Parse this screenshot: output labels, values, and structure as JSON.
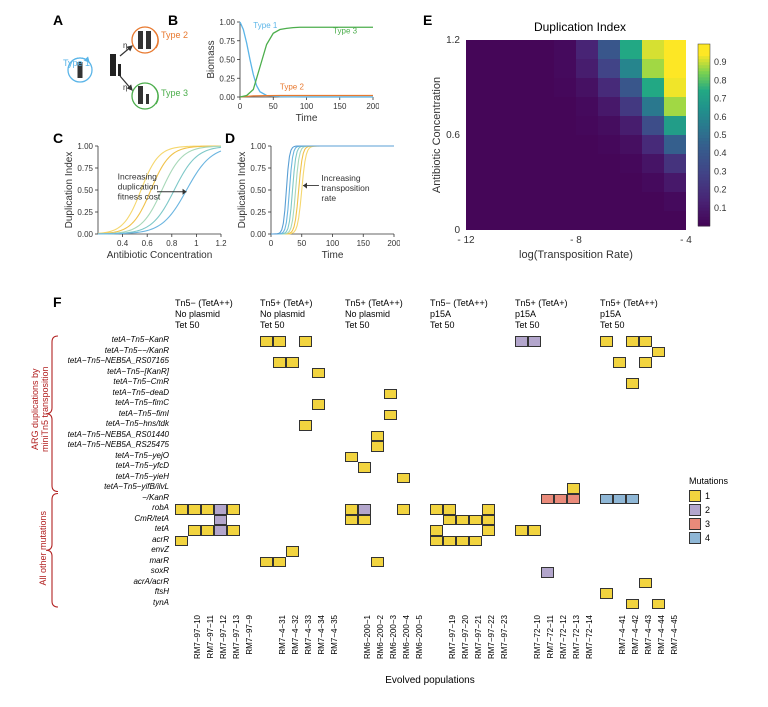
{
  "panelA": {
    "label": "A",
    "types": {
      "type1": {
        "label": "Type 1",
        "color": "#5bb5e8"
      },
      "type2": {
        "label": "Type 2",
        "color": "#e8792f"
      },
      "type3": {
        "label": "Type 3",
        "color": "#4cae4c"
      }
    },
    "eta": "η"
  },
  "panelB": {
    "label": "B",
    "xlabel": "Time",
    "ylabel": "Biomass",
    "xlim": [
      0,
      200
    ],
    "ylim": [
      0,
      1.0
    ],
    "xticks": [
      0,
      50,
      100,
      150,
      200
    ],
    "yticks": [
      0.0,
      0.25,
      0.5,
      0.75,
      1.0
    ],
    "series": {
      "type1": {
        "label": "Type 1",
        "color": "#5bb5e8",
        "x": [
          0,
          5,
          10,
          15,
          20,
          25,
          30,
          40,
          60,
          100,
          200
        ],
        "y": [
          1.0,
          0.9,
          0.72,
          0.5,
          0.3,
          0.15,
          0.07,
          0.02,
          0.003,
          0.001,
          0.001
        ]
      },
      "type2": {
        "label": "Type 2",
        "color": "#e8792f",
        "x": [
          0,
          20,
          40,
          60,
          80,
          100,
          150,
          200
        ],
        "y": [
          0.0,
          0.015,
          0.018,
          0.02,
          0.02,
          0.02,
          0.02,
          0.02
        ]
      },
      "type3": {
        "label": "Type 3",
        "color": "#4cae4c",
        "x": [
          0,
          10,
          20,
          30,
          40,
          50,
          60,
          70,
          80,
          90,
          100,
          150,
          200
        ],
        "y": [
          0.0,
          0.02,
          0.1,
          0.4,
          0.7,
          0.85,
          0.9,
          0.915,
          0.925,
          0.93,
          0.93,
          0.93,
          0.93
        ]
      }
    }
  },
  "panelC": {
    "label": "C",
    "xlabel": "Antibiotic Concentration",
    "ylabel": "Duplication Index",
    "xlim": [
      0.2,
      1.2
    ],
    "ylim": [
      0,
      1.0
    ],
    "xticks": [
      0.4,
      0.6,
      0.8,
      1.0,
      1.2
    ],
    "yticks": [
      0.0,
      0.25,
      0.5,
      0.75,
      1.0
    ],
    "annotation": "Increasing\nduplication\nfitness cost",
    "curves": [
      {
        "color": "#f5d76e",
        "x50": 0.55,
        "k": 14
      },
      {
        "color": "#f0c24b",
        "x50": 0.63,
        "k": 13
      },
      {
        "color": "#a8d8b9",
        "x50": 0.72,
        "k": 12
      },
      {
        "color": "#7ec8c8",
        "x50": 0.82,
        "k": 11
      },
      {
        "color": "#6bb5e0",
        "x50": 0.92,
        "k": 10
      }
    ]
  },
  "panelD": {
    "label": "D",
    "xlabel": "Time",
    "ylabel": "Duplication Index",
    "xlim": [
      0,
      200
    ],
    "ylim": [
      0,
      1.0
    ],
    "xticks": [
      0,
      50,
      100,
      150,
      200
    ],
    "yticks": [
      0.0,
      0.25,
      0.5,
      0.75,
      1.0
    ],
    "annotation": "Increasing\ntransposition\nrate",
    "curves": [
      {
        "color": "#f5d76e",
        "x50": 50,
        "k": 0.3
      },
      {
        "color": "#f0c24b",
        "x50": 45,
        "k": 0.32
      },
      {
        "color": "#a8d8b9",
        "x50": 40,
        "k": 0.34
      },
      {
        "color": "#7ec8c8",
        "x50": 35,
        "k": 0.36
      },
      {
        "color": "#6bb5e0",
        "x50": 30,
        "k": 0.38
      },
      {
        "color": "#5a9fd4",
        "x50": 25,
        "k": 0.4
      }
    ]
  },
  "panelE": {
    "label": "E",
    "title": "Duplication Index",
    "xlabel": "log(Transposition Rate)",
    "ylabel": "Antibiotic Concentration",
    "xticks": [
      "- 12",
      "- 8",
      "- 4"
    ],
    "yticks": [
      "0",
      "0.6",
      "1.2"
    ],
    "cbar_ticks": [
      "0.1",
      "0.2",
      "0.3",
      "0.4",
      "0.5",
      "0.6",
      "0.7",
      "0.8",
      "0.9"
    ],
    "nrows": 10,
    "ncols": 10,
    "colorscale": [
      [
        0.0,
        "#440154"
      ],
      [
        0.15,
        "#482475"
      ],
      [
        0.3,
        "#414487"
      ],
      [
        0.45,
        "#355f8d"
      ],
      [
        0.55,
        "#2a788e"
      ],
      [
        0.65,
        "#21918c"
      ],
      [
        0.75,
        "#22a884"
      ],
      [
        0.85,
        "#7ad151"
      ],
      [
        0.95,
        "#fde725"
      ]
    ],
    "grid": [
      [
        0.02,
        0.02,
        0.02,
        0.02,
        0.04,
        0.15,
        0.4,
        0.75,
        0.92,
        0.97
      ],
      [
        0.02,
        0.02,
        0.02,
        0.02,
        0.04,
        0.12,
        0.3,
        0.6,
        0.88,
        0.96
      ],
      [
        0.02,
        0.02,
        0.02,
        0.02,
        0.03,
        0.07,
        0.18,
        0.4,
        0.75,
        0.94
      ],
      [
        0.02,
        0.02,
        0.02,
        0.02,
        0.02,
        0.04,
        0.1,
        0.25,
        0.55,
        0.88
      ],
      [
        0.02,
        0.02,
        0.02,
        0.02,
        0.02,
        0.03,
        0.05,
        0.12,
        0.35,
        0.7
      ],
      [
        0.02,
        0.02,
        0.02,
        0.02,
        0.02,
        0.02,
        0.03,
        0.06,
        0.18,
        0.45
      ],
      [
        0.02,
        0.02,
        0.02,
        0.02,
        0.02,
        0.02,
        0.02,
        0.03,
        0.08,
        0.22
      ],
      [
        0.02,
        0.02,
        0.02,
        0.02,
        0.02,
        0.02,
        0.02,
        0.02,
        0.04,
        0.1
      ],
      [
        0.02,
        0.02,
        0.02,
        0.02,
        0.02,
        0.02,
        0.02,
        0.02,
        0.02,
        0.04
      ],
      [
        0.02,
        0.02,
        0.02,
        0.02,
        0.02,
        0.02,
        0.02,
        0.02,
        0.02,
        0.02
      ]
    ]
  },
  "panelF": {
    "label": "F",
    "xlabel": "Evolved populations",
    "bracket1": "ARG duplications by\nminiTn5 transposition",
    "bracket2": "All other mutations",
    "mutations_legend_title": "Mutations",
    "mutation_colors": {
      "1": "#f2d43f",
      "2": "#b3a6cc",
      "3": "#e98a7a",
      "4": "#8fb7d6"
    },
    "mutation_levels": [
      "1",
      "2",
      "3",
      "4"
    ],
    "headers": [
      [
        "Tn5− (TetA++)",
        "No plasmid",
        "Tet 50"
      ],
      [
        "Tn5+ (TetA+)",
        "No plasmid",
        "Tet 50"
      ],
      [
        "Tn5+ (TetA++)",
        "No plasmid",
        "Tet 50"
      ],
      [
        "Tn5− (TetA++)",
        "p15A",
        "Tet 50"
      ],
      [
        "Tn5+ (TetA+)",
        "p15A",
        "Tet 50"
      ],
      [
        "Tn5+ (TetA++)",
        "p15A",
        "Tet 50"
      ]
    ],
    "rows_group1": [
      "tetA−Tn5−KanR",
      "tetA−Tn5−−/KanR",
      "tetA−Tn5−NEB5A_RS07165",
      "tetA−Tn5−[KanR]",
      "tetA−Tn5−CmR",
      "tetA−Tn5−deaD",
      "tetA−Tn5−fimC",
      "tetA−Tn5−fimI",
      "tetA−Tn5−hns/tdk",
      "tetA−Tn5−NEB5A_RS01440",
      "tetA−Tn5−NEB5A_RS25475",
      "tetA−Tn5−yejO",
      "tetA−Tn5−yfcD",
      "tetA−Tn5−yieH",
      "tetA−Tn5−yifB/ilvL"
    ],
    "rows_group2": [
      "−/KanR",
      "robA",
      "CmR/tetA",
      "tetA",
      "acrR",
      "envZ",
      "marR",
      "soxR",
      "acrA/acrR",
      "ftsH",
      "tynA"
    ],
    "columns": [
      [
        "RM7−97−10",
        "RM7−97−11",
        "RM7−97−12",
        "RM7−97−13",
        "RM7−97−9"
      ],
      [
        "RM7−4−31",
        "RM7−4−32",
        "RM7−4−33",
        "RM7−4−34",
        "RM7−4−35"
      ],
      [
        "RM6−200−1",
        "RM6−200−2",
        "RM6−200−3",
        "RM6−200−4",
        "RM6−200−5"
      ],
      [
        "RM7−97−19",
        "RM7−97−20",
        "RM7−97−21",
        "RM7−97−22",
        "RM7−97−23"
      ],
      [
        "RM7−72−10",
        "RM7−72−11",
        "RM7−72−12",
        "RM7−72−13",
        "RM7−72−14"
      ],
      [
        "RM7−4−41",
        "RM7−4−42",
        "RM7−4−43",
        "RM7−4−44",
        "RM7−4−45"
      ]
    ],
    "cells": [
      {
        "r": 0,
        "g": 1,
        "p": 0,
        "m": 1
      },
      {
        "r": 0,
        "g": 1,
        "p": 1,
        "m": 1
      },
      {
        "r": 0,
        "g": 1,
        "p": 3,
        "m": 1
      },
      {
        "r": 0,
        "g": 4,
        "p": 0,
        "m": 2
      },
      {
        "r": 0,
        "g": 4,
        "p": 1,
        "m": 2
      },
      {
        "r": 0,
        "g": 5,
        "p": 0,
        "m": 1
      },
      {
        "r": 0,
        "g": 5,
        "p": 2,
        "m": 1
      },
      {
        "r": 0,
        "g": 5,
        "p": 3,
        "m": 1
      },
      {
        "r": 1,
        "g": 5,
        "p": 4,
        "m": 1
      },
      {
        "r": 2,
        "g": 1,
        "p": 1,
        "m": 1
      },
      {
        "r": 2,
        "g": 1,
        "p": 2,
        "m": 1
      },
      {
        "r": 2,
        "g": 5,
        "p": 1,
        "m": 1
      },
      {
        "r": 2,
        "g": 5,
        "p": 3,
        "m": 1
      },
      {
        "r": 3,
        "g": 1,
        "p": 4,
        "m": 1
      },
      {
        "r": 4,
        "g": 5,
        "p": 2,
        "m": 1
      },
      {
        "r": 5,
        "g": 2,
        "p": 3,
        "m": 1
      },
      {
        "r": 6,
        "g": 1,
        "p": 4,
        "m": 1
      },
      {
        "r": 7,
        "g": 2,
        "p": 3,
        "m": 1
      },
      {
        "r": 8,
        "g": 1,
        "p": 3,
        "m": 1
      },
      {
        "r": 9,
        "g": 2,
        "p": 2,
        "m": 1
      },
      {
        "r": 10,
        "g": 2,
        "p": 2,
        "m": 1
      },
      {
        "r": 11,
        "g": 2,
        "p": 0,
        "m": 1
      },
      {
        "r": 12,
        "g": 2,
        "p": 1,
        "m": 1
      },
      {
        "r": 13,
        "g": 2,
        "p": 4,
        "m": 1
      },
      {
        "r": 14,
        "g": 4,
        "p": 4,
        "m": 1
      },
      {
        "r": 15,
        "g": 4,
        "p": 2,
        "m": 3
      },
      {
        "r": 15,
        "g": 4,
        "p": 3,
        "m": 3
      },
      {
        "r": 15,
        "g": 4,
        "p": 4,
        "m": 3
      },
      {
        "r": 15,
        "g": 5,
        "p": 0,
        "m": 4
      },
      {
        "r": 15,
        "g": 5,
        "p": 1,
        "m": 4
      },
      {
        "r": 15,
        "g": 5,
        "p": 2,
        "m": 4
      },
      {
        "r": 16,
        "g": 0,
        "p": 0,
        "m": 1
      },
      {
        "r": 16,
        "g": 0,
        "p": 1,
        "m": 1
      },
      {
        "r": 16,
        "g": 0,
        "p": 2,
        "m": 1
      },
      {
        "r": 16,
        "g": 0,
        "p": 3,
        "m": 2
      },
      {
        "r": 16,
        "g": 0,
        "p": 4,
        "m": 1
      },
      {
        "r": 16,
        "g": 2,
        "p": 0,
        "m": 1
      },
      {
        "r": 16,
        "g": 2,
        "p": 1,
        "m": 2
      },
      {
        "r": 16,
        "g": 2,
        "p": 4,
        "m": 1
      },
      {
        "r": 16,
        "g": 3,
        "p": 0,
        "m": 1
      },
      {
        "r": 16,
        "g": 3,
        "p": 1,
        "m": 1
      },
      {
        "r": 16,
        "g": 3,
        "p": 4,
        "m": 1
      },
      {
        "r": 17,
        "g": 0,
        "p": 3,
        "m": 2
      },
      {
        "r": 17,
        "g": 2,
        "p": 0,
        "m": 1
      },
      {
        "r": 17,
        "g": 2,
        "p": 1,
        "m": 1
      },
      {
        "r": 17,
        "g": 3,
        "p": 1,
        "m": 1
      },
      {
        "r": 17,
        "g": 3,
        "p": 2,
        "m": 1
      },
      {
        "r": 17,
        "g": 3,
        "p": 3,
        "m": 1
      },
      {
        "r": 17,
        "g": 3,
        "p": 4,
        "m": 1
      },
      {
        "r": 18,
        "g": 0,
        "p": 1,
        "m": 1
      },
      {
        "r": 18,
        "g": 0,
        "p": 2,
        "m": 1
      },
      {
        "r": 18,
        "g": 0,
        "p": 3,
        "m": 2
      },
      {
        "r": 18,
        "g": 0,
        "p": 4,
        "m": 1
      },
      {
        "r": 18,
        "g": 3,
        "p": 0,
        "m": 1
      },
      {
        "r": 18,
        "g": 3,
        "p": 4,
        "m": 1
      },
      {
        "r": 18,
        "g": 4,
        "p": 0,
        "m": 1
      },
      {
        "r": 18,
        "g": 4,
        "p": 1,
        "m": 1
      },
      {
        "r": 19,
        "g": 0,
        "p": 0,
        "m": 1
      },
      {
        "r": 19,
        "g": 3,
        "p": 0,
        "m": 1
      },
      {
        "r": 19,
        "g": 3,
        "p": 1,
        "m": 1
      },
      {
        "r": 19,
        "g": 3,
        "p": 2,
        "m": 1
      },
      {
        "r": 19,
        "g": 3,
        "p": 3,
        "m": 1
      },
      {
        "r": 20,
        "g": 1,
        "p": 2,
        "m": 1
      },
      {
        "r": 21,
        "g": 1,
        "p": 0,
        "m": 1
      },
      {
        "r": 21,
        "g": 1,
        "p": 1,
        "m": 1
      },
      {
        "r": 21,
        "g": 2,
        "p": 2,
        "m": 1
      },
      {
        "r": 22,
        "g": 4,
        "p": 2,
        "m": 2
      },
      {
        "r": 23,
        "g": 5,
        "p": 3,
        "m": 1
      },
      {
        "r": 24,
        "g": 5,
        "p": 0,
        "m": 1
      },
      {
        "r": 25,
        "g": 5,
        "p": 2,
        "m": 1
      },
      {
        "r": 25,
        "g": 5,
        "p": 4,
        "m": 1
      }
    ]
  }
}
